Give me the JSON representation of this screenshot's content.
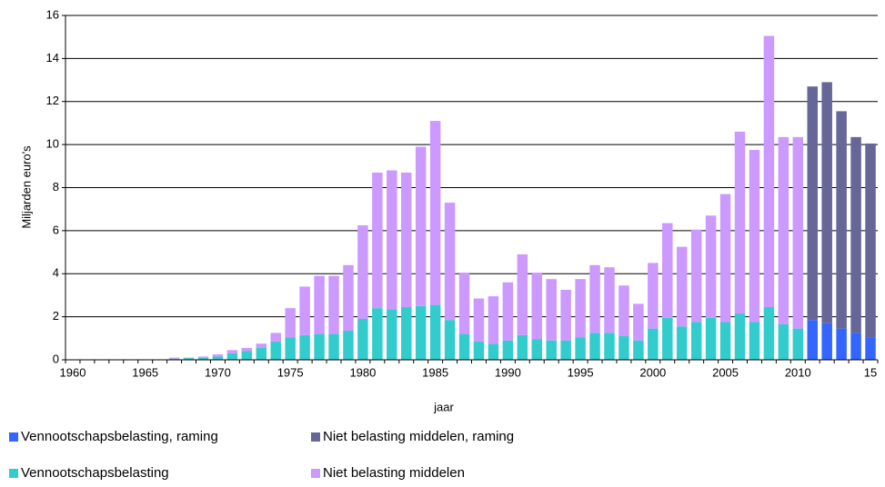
{
  "chart_data": {
    "type": "stacked_bar",
    "x_label": "jaar",
    "y_label": "Miljarden euro's",
    "categories": [
      "1960",
      null,
      null,
      null,
      null,
      "1965",
      null,
      null,
      null,
      null,
      "1970",
      null,
      null,
      null,
      null,
      "1975",
      null,
      null,
      null,
      null,
      "1980",
      null,
      null,
      null,
      null,
      "1985",
      null,
      null,
      null,
      null,
      "1990",
      null,
      null,
      null,
      null,
      "1995",
      null,
      null,
      null,
      null,
      "2000",
      null,
      null,
      null,
      null,
      "2005",
      null,
      null,
      null,
      null,
      "2010",
      null,
      null,
      null,
      null,
      "15"
    ],
    "series": [
      {
        "name": "Vennootschapsbelasting, raming",
        "color": "#3366ff",
        "values": [
          null,
          null,
          null,
          null,
          null,
          null,
          null,
          null,
          null,
          null,
          null,
          null,
          null,
          null,
          null,
          null,
          null,
          null,
          null,
          null,
          null,
          null,
          null,
          null,
          null,
          null,
          null,
          null,
          null,
          null,
          null,
          null,
          null,
          null,
          null,
          null,
          null,
          null,
          null,
          null,
          null,
          null,
          null,
          null,
          null,
          null,
          null,
          null,
          null,
          null,
          null,
          1.85,
          1.7,
          1.45,
          1.25,
          1.05
        ]
      },
      {
        "name": "Niet belasting middelen, raming",
        "color": "#666699",
        "values": [
          null,
          null,
          null,
          null,
          null,
          null,
          null,
          null,
          null,
          null,
          null,
          null,
          null,
          null,
          null,
          null,
          null,
          null,
          null,
          null,
          null,
          null,
          null,
          null,
          null,
          null,
          null,
          null,
          null,
          null,
          null,
          null,
          null,
          null,
          null,
          null,
          null,
          null,
          null,
          null,
          null,
          null,
          null,
          null,
          null,
          null,
          null,
          null,
          null,
          null,
          null,
          10.85,
          11.2,
          10.1,
          9.1,
          9.0
        ]
      },
      {
        "name": "Vennootschapsbelasting",
        "color": "#33cccc",
        "values": [
          0,
          0,
          0,
          0,
          0,
          0,
          0,
          0.05,
          0.08,
          0.1,
          0.15,
          0.3,
          0.4,
          0.55,
          0.85,
          1.05,
          1.15,
          1.2,
          1.2,
          1.35,
          1.9,
          2.4,
          2.35,
          2.45,
          2.5,
          2.55,
          1.85,
          1.2,
          0.85,
          0.75,
          0.9,
          1.15,
          0.95,
          0.9,
          0.9,
          1.05,
          1.25,
          1.25,
          1.1,
          0.9,
          1.45,
          1.95,
          1.55,
          1.75,
          1.95,
          1.75,
          2.15,
          1.75,
          2.45,
          1.65,
          1.45,
          null,
          null,
          null,
          null,
          null
        ]
      },
      {
        "name": "Niet belasting middelen",
        "color": "#cc99ff",
        "values": [
          0,
          0,
          0,
          0,
          0,
          0,
          0,
          0.05,
          0.02,
          0.05,
          0.1,
          0.15,
          0.15,
          0.2,
          0.4,
          1.35,
          2.25,
          2.7,
          2.7,
          3.05,
          4.35,
          6.3,
          6.45,
          6.25,
          7.4,
          8.55,
          5.45,
          2.85,
          2.0,
          2.2,
          2.7,
          3.75,
          3.1,
          2.85,
          2.35,
          2.7,
          3.15,
          3.05,
          2.35,
          1.7,
          3.05,
          4.4,
          3.7,
          4.3,
          4.75,
          5.95,
          8.45,
          8.0,
          12.6,
          8.7,
          8.9,
          null,
          null,
          null,
          null,
          null
        ]
      }
    ],
    "ylim": [
      0,
      16
    ],
    "yticks": [
      0,
      2,
      4,
      6,
      8,
      10,
      12,
      14,
      16
    ],
    "grid": true
  }
}
